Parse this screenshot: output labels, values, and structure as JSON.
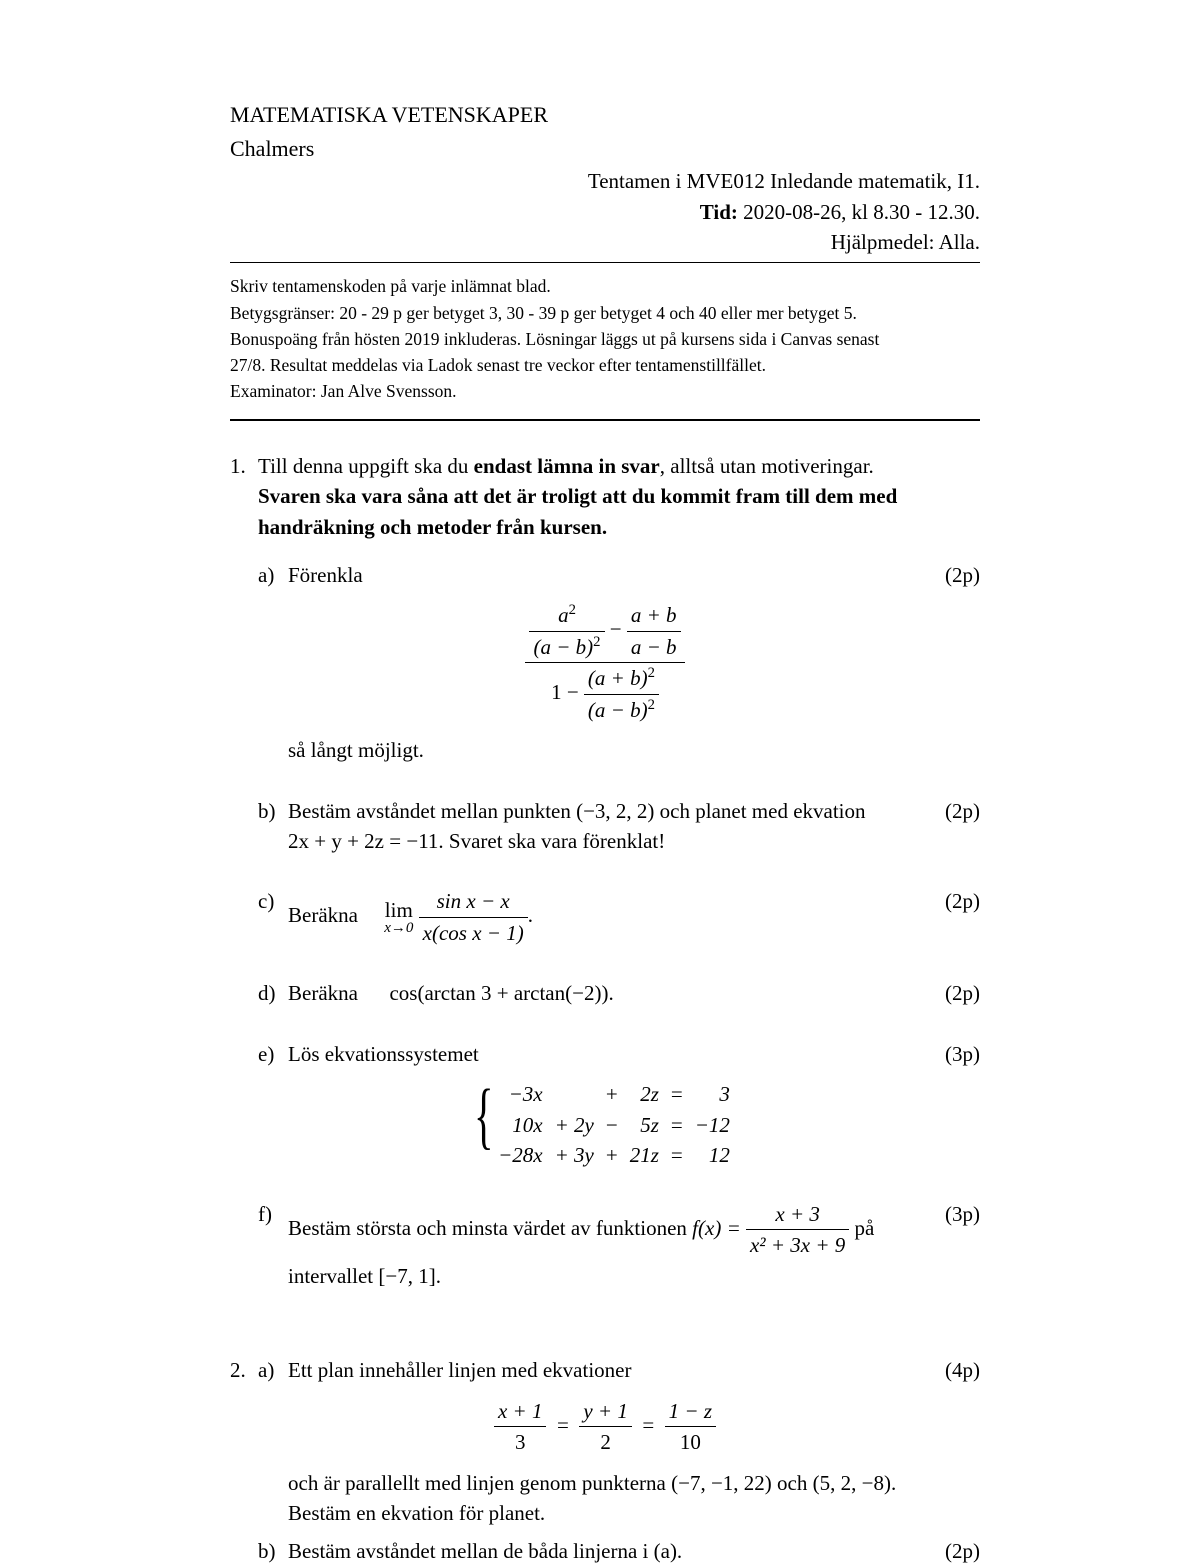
{
  "header": {
    "dept": "MATEMATISKA VETENSKAPER",
    "school": "Chalmers",
    "course_line": "Tentamen i MVE012 Inledande matematik, I1.",
    "time_label": "Tid:",
    "time_value": "2020-08-26, kl 8.30 - 12.30.",
    "aids": "Hjälpmedel: Alla."
  },
  "instructions": {
    "l1": "Skriv tentamenskoden på varje inlämnat blad.",
    "l2": "Betygsgränser: 20 - 29 p ger betyget 3, 30 - 39 p ger betyget 4 och 40 eller mer betyget 5.",
    "l3": "Bonuspoäng från hösten 2019 inkluderas. Lösningar läggs ut på kursens sida i Canvas senast",
    "l4": "27/8. Resultat meddelas via Ladok senast tre veckor efter tentamenstillfället.",
    "l5": "Examinator: Jan Alve Svensson."
  },
  "q1": {
    "num": "1.",
    "intro_pre": "Till denna uppgift ska du ",
    "intro_bold1": "endast lämna in svar",
    "intro_mid": ", alltså utan motiveringar. ",
    "intro_bold2": "Svaren ska vara såna att det är troligt att du kommit fram till dem med handräkning och metoder från kursen.",
    "a": {
      "label": "a)",
      "text": "Förenkla",
      "after": "så långt möjligt.",
      "pts": "(2p)",
      "num_top_left_n": "a",
      "num_top_left_d": "(a − b)",
      "num_top_right_n": "a + b",
      "num_top_right_d": "a − b",
      "den_right_n": "(a + b)",
      "den_right_d": "(a − b)"
    },
    "b": {
      "label": "b)",
      "text1": "Bestäm avståndet mellan punkten (−3, 2, 2) och planet med ekvation",
      "text2": "2x + y + 2z = −11. Svaret ska vara förenklat!",
      "pts": "(2p)"
    },
    "c": {
      "label": "c)",
      "text": "Beräkna",
      "pts": "(2p)",
      "lim_top": "lim",
      "lim_bot": "x→0",
      "frac_n": "sin x − x",
      "frac_d": "x(cos x − 1)",
      "period": "."
    },
    "d": {
      "label": "d)",
      "text": "Beräkna   cos(arctan 3 + arctan(−2)).",
      "pts": "(2p)"
    },
    "e": {
      "label": "e)",
      "text": "Lös ekvationssystemet",
      "pts": "(3p)",
      "rows": [
        [
          "−3x",
          "",
          "+",
          "2z",
          "=",
          "3"
        ],
        [
          "10x",
          "+ 2y",
          "−",
          "5z",
          "=",
          "−12"
        ],
        [
          "−28x",
          "+ 3y",
          "+",
          "21z",
          "=",
          "12"
        ]
      ]
    },
    "f": {
      "label": "f)",
      "text_pre": "Bestäm största och minsta värdet av funktionen ",
      "fx": "f(x) = ",
      "frac_n": "x + 3",
      "frac_d": "x² + 3x + 9",
      "text_post": " på",
      "line2": "intervallet [−7, 1].",
      "pts": "(3p)"
    }
  },
  "q2": {
    "num": "2.",
    "a": {
      "label": "a)",
      "text": "Ett plan innehåller linjen med ekvationer",
      "pts": "(4p)",
      "eq_l_n": "x + 1",
      "eq_l_d": "3",
      "eq_m_n": "y + 1",
      "eq_m_d": "2",
      "eq_r_n": "1 − z",
      "eq_r_d": "10",
      "after1": "och är parallellt med linjen genom punkterna (−7, −1, 22) och (5, 2, −8).",
      "after2": "Bestäm en ekvation för planet."
    },
    "b": {
      "label": "b)",
      "text": "Bestäm avståndet mellan de båda linjerna i (a).",
      "pts": "(2p)"
    }
  }
}
